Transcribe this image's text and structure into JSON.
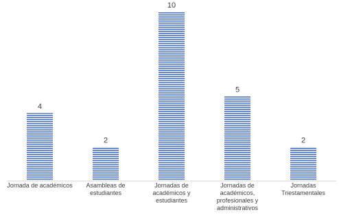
{
  "chart_data": {
    "type": "bar",
    "title": "",
    "xlabel": "",
    "ylabel": "",
    "categories": [
      [
        "Jornada de académicos"
      ],
      [
        "Asambleas de",
        "estudiantes"
      ],
      [
        "Jornadas de",
        "académicos y",
        "estudiantes"
      ],
      [
        "Jornadas de",
        "académicos,",
        "profesionales y",
        "administrativos"
      ],
      [
        "Jornadas",
        "Triestamentales"
      ]
    ],
    "values": [
      4,
      2,
      10,
      5,
      2
    ],
    "ylim": [
      0,
      10
    ],
    "grid": false,
    "legend": "none",
    "bar_fill_pattern": "horizontal-stripes",
    "colors": {
      "bar_stripe": "#4a72c4",
      "bar_gap": "#ffffff",
      "axis": "#d9d9d9",
      "text": "#404040"
    }
  }
}
